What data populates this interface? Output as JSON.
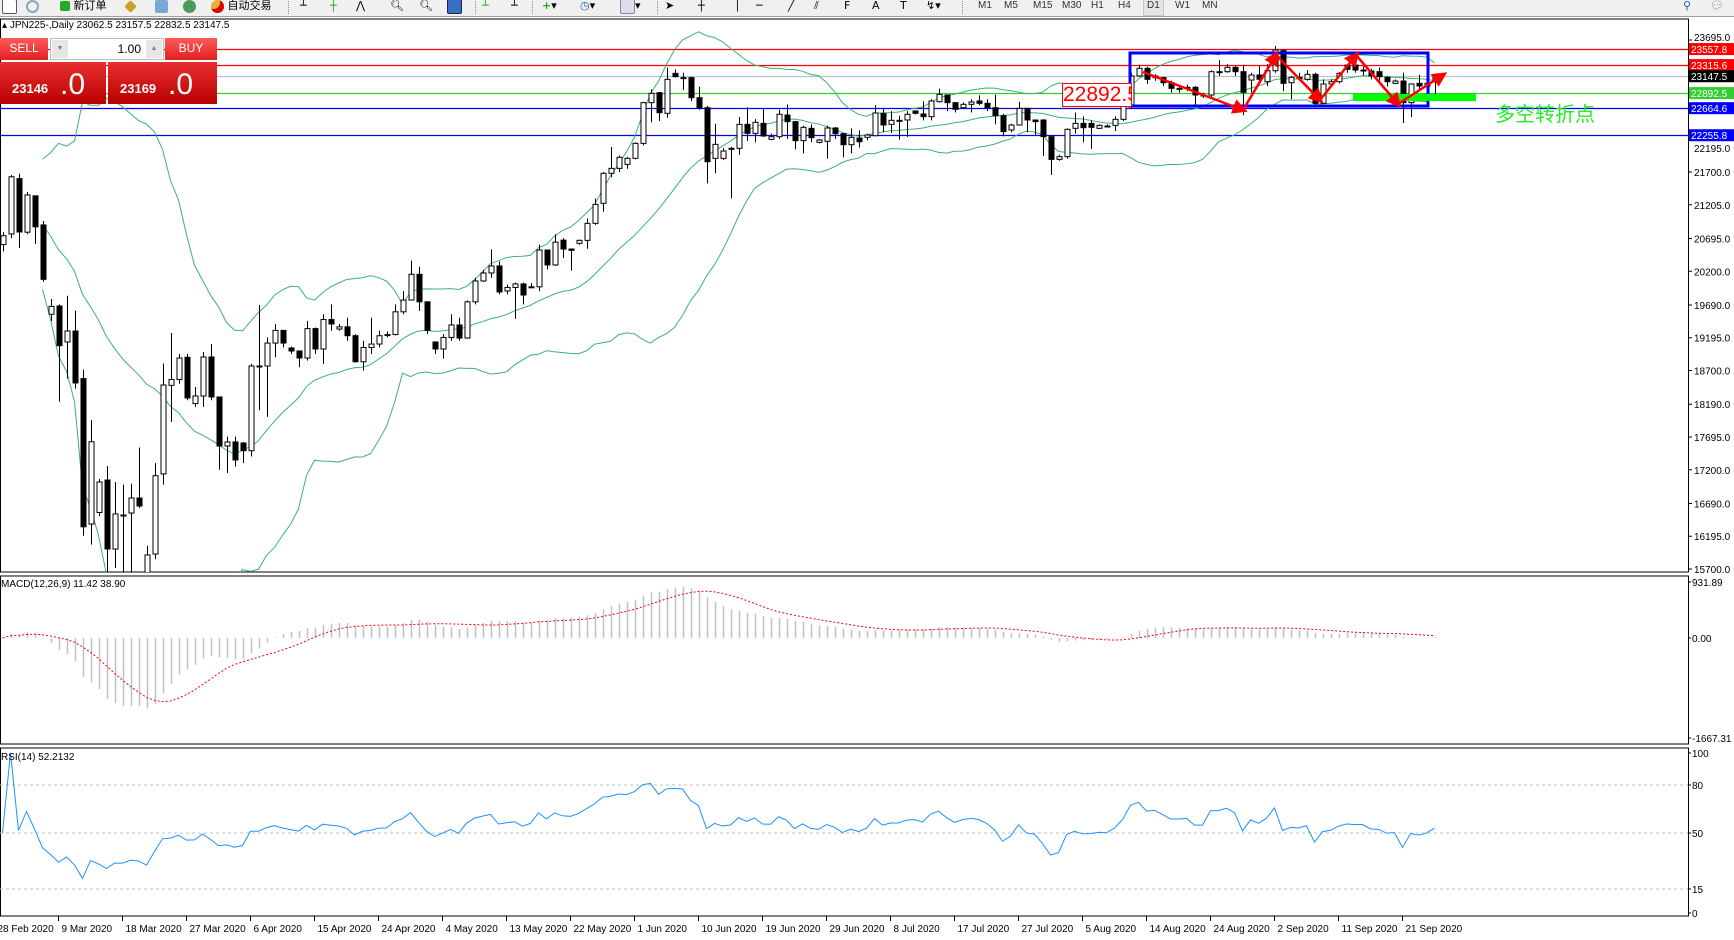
{
  "toolbar": {
    "new_order_label": "新订单",
    "auto_trading_label": "自动交易",
    "timeframes": [
      "M1",
      "M5",
      "M15",
      "M30",
      "H1",
      "H4",
      "D1",
      "W1",
      "MN"
    ],
    "selected_timeframe": "D1",
    "text_tool": "A",
    "fibo_tool": "F"
  },
  "chart_title": "JPN225-,Daily",
  "ohlc_readout": "23062.5 23157.5 22832.5 23147.5",
  "trade_panel": {
    "sell_label": "SELL",
    "buy_label": "BUY",
    "lot_value": "1.00",
    "sell_price_main": "23146",
    "sell_price_big": ".0",
    "buy_price_main": "23169",
    "buy_price_big": ".0"
  },
  "annotations": {
    "box_label": "22892.5",
    "note": "多空转折点"
  },
  "colors": {
    "bullish": "#ffffff",
    "bearish": "#000000",
    "bands": "#3cb371",
    "macd_hist": "#c0c0c0",
    "macd_signal": "#ff0000",
    "rsi": "#1e90ff",
    "arrows": "#ff0000",
    "box": "#0000ff",
    "marker": "#00ff00"
  },
  "chart_data": {
    "type": "candlestick",
    "symbol": "JPN225-",
    "timeframe": "Daily",
    "ylim": [
      15700,
      23695
    ],
    "price_ticks": [
      "23695.0",
      "22195.0",
      "21700.0",
      "21205.0",
      "20695.0",
      "20200.0",
      "19690.0",
      "19195.0",
      "18700.0",
      "18190.0",
      "17695.0",
      "17200.0",
      "16690.0",
      "16195.0",
      "15700.0"
    ],
    "date_labels": [
      "28 Feb 2020",
      "9 Mar 2020",
      "18 Mar 2020",
      "27 Mar 2020",
      "6 Apr 2020",
      "15 Apr 2020",
      "24 Apr 2020",
      "4 May 2020",
      "13 May 2020",
      "22 May 2020",
      "1 Jun 2020",
      "10 Jun 2020",
      "19 Jun 2020",
      "29 Jun 2020",
      "8 Jul 2020",
      "17 Jul 2020",
      "27 Jul 2020",
      "5 Aug 2020",
      "14 Aug 2020",
      "24 Aug 2020",
      "2 Sep 2020",
      "11 Sep 2020",
      "21 Sep 2020"
    ],
    "ohlc": [
      [
        20603,
        20790,
        20500,
        20737
      ],
      [
        20763,
        21655,
        20700,
        21628
      ],
      [
        21600,
        21676,
        20552,
        20793
      ],
      [
        20790,
        21400,
        20760,
        21353
      ],
      [
        21340,
        21340,
        20612,
        20872
      ],
      [
        20900,
        20960,
        20040,
        20078
      ],
      [
        19550,
        19781,
        19448,
        19669
      ],
      [
        19675,
        19700,
        18227,
        19075
      ],
      [
        19131,
        19830,
        18578,
        19297
      ],
      [
        19297,
        19604,
        18426,
        18512
      ],
      [
        18578,
        18714,
        16203,
        16338
      ],
      [
        16380,
        17952,
        16069,
        17623
      ],
      [
        16554,
        17060,
        16500,
        17015
      ],
      [
        17045,
        17257,
        15404,
        16002
      ],
      [
        16002,
        17015,
        15715,
        16532
      ],
      [
        16516,
        16976,
        15555,
        16516
      ],
      [
        16546,
        16990,
        15600,
        16773
      ],
      [
        16773,
        17536,
        16620,
        16652
      ],
      [
        15437,
        16050,
        15400,
        15912
      ],
      [
        15927,
        17300,
        15850,
        17110
      ],
      [
        17137,
        18805,
        16976,
        18481
      ],
      [
        18476,
        19267,
        17922,
        18563
      ],
      [
        18563,
        18950,
        18500,
        18889
      ],
      [
        18900,
        18950,
        18250,
        18285
      ],
      [
        18200,
        18450,
        18150,
        18315
      ],
      [
        18315,
        18980,
        18150,
        18904
      ],
      [
        18904,
        19100,
        18250,
        18300
      ],
      [
        18300,
        18300,
        17200,
        17559
      ],
      [
        17559,
        17700,
        17150,
        17620
      ],
      [
        17620,
        17700,
        17250,
        17348
      ],
      [
        17604,
        17620,
        17300,
        17488
      ],
      [
        17488,
        18800,
        17400,
        18768
      ],
      [
        18768,
        19690,
        18100,
        18768
      ],
      [
        18768,
        19200,
        18000,
        19115
      ],
      [
        19115,
        19400,
        18900,
        19306
      ],
      [
        19306,
        19306,
        19050,
        19115
      ],
      [
        19040,
        19060,
        18950,
        18995
      ],
      [
        18995,
        18995,
        18750,
        18889
      ],
      [
        18889,
        19450,
        18850,
        19333
      ],
      [
        19333,
        19350,
        18950,
        19025
      ],
      [
        19025,
        19550,
        18800,
        19470
      ],
      [
        19470,
        19700,
        19300,
        19403
      ],
      [
        19327,
        19400,
        19300,
        19360
      ],
      [
        19360,
        19500,
        19150,
        19226
      ],
      [
        19226,
        19250,
        18820,
        18832
      ],
      [
        18832,
        19150,
        18700,
        19048
      ],
      [
        19048,
        19500,
        18950,
        19100
      ],
      [
        19100,
        19300,
        19050,
        19226
      ],
      [
        19243,
        19290,
        19200,
        19243
      ],
      [
        19243,
        19700,
        19230,
        19587
      ],
      [
        19587,
        19900,
        19550,
        19765
      ],
      [
        19765,
        20360,
        19760,
        20154
      ],
      [
        20154,
        20270,
        19600,
        19738
      ],
      [
        19738,
        19738,
        19250,
        19306
      ],
      [
        19131,
        19131,
        18950,
        19025
      ],
      [
        19025,
        19250,
        18880,
        19199
      ],
      [
        19199,
        19550,
        19150,
        19388
      ],
      [
        19388,
        19500,
        19150,
        19191
      ],
      [
        19191,
        19760,
        19180,
        19738
      ],
      [
        19738,
        20100,
        19700,
        20053
      ],
      [
        20053,
        20220,
        20040,
        20174
      ],
      [
        20174,
        20530,
        20100,
        20280
      ],
      [
        20280,
        20350,
        19850,
        19887
      ],
      [
        19902,
        20000,
        19850,
        19955
      ],
      [
        19955,
        20030,
        19480,
        20008
      ],
      [
        20008,
        20030,
        19700,
        19841
      ],
      [
        19965,
        20020,
        19950,
        19965
      ],
      [
        19965,
        20600,
        19900,
        20521
      ],
      [
        20521,
        20521,
        20230,
        20295
      ],
      [
        20295,
        20760,
        20280,
        20640
      ],
      [
        20670,
        20700,
        20400,
        20536
      ],
      [
        20536,
        20540,
        20209,
        20516
      ],
      [
        20622,
        20680,
        20600,
        20667
      ],
      [
        20667,
        21000,
        20540,
        20924
      ],
      [
        20924,
        21300,
        20900,
        21211
      ],
      [
        21227,
        21700,
        21100,
        21680
      ],
      [
        21680,
        22078,
        21620,
        21755
      ],
      [
        21755,
        21950,
        21700,
        21922
      ],
      [
        21816,
        21930,
        21750,
        21907
      ],
      [
        21907,
        22150,
        21890,
        22133
      ],
      [
        22133,
        22760,
        22100,
        22748
      ],
      [
        22748,
        22950,
        22450,
        22889
      ],
      [
        22899,
        22910,
        22470,
        22597
      ],
      [
        22587,
        23277,
        22520,
        23100
      ],
      [
        23191,
        23250,
        23130,
        23141
      ],
      [
        23126,
        23200,
        22940,
        23126
      ],
      [
        23126,
        23140,
        22770,
        22823
      ],
      [
        22823,
        22990,
        22640,
        22672
      ],
      [
        22672,
        22700,
        21529,
        21856
      ],
      [
        21906,
        22430,
        21680,
        22118
      ],
      [
        21906,
        22060,
        21880,
        22017
      ],
      [
        22058,
        22080,
        21302,
        22058
      ],
      [
        22058,
        22530,
        21960,
        22420
      ],
      [
        22420,
        22680,
        22170,
        22284
      ],
      [
        22284,
        22500,
        22150,
        22451
      ],
      [
        22435,
        22650,
        22230,
        22244
      ],
      [
        22194,
        22280,
        22180,
        22234
      ],
      [
        22234,
        22640,
        22200,
        22572
      ],
      [
        22561,
        22720,
        22200,
        22461
      ],
      [
        22461,
        22470,
        22040,
        22174
      ],
      [
        22174,
        22400,
        21980,
        22375
      ],
      [
        22360,
        22420,
        22150,
        22219
      ],
      [
        22148,
        22200,
        22130,
        22184
      ],
      [
        22164,
        22400,
        21900,
        22365
      ],
      [
        22365,
        22380,
        22200,
        22279
      ],
      [
        22279,
        22290,
        21920,
        22113
      ],
      [
        22113,
        22360,
        21980,
        22224
      ],
      [
        22214,
        22330,
        22070,
        22158
      ],
      [
        22224,
        22280,
        22180,
        22259
      ],
      [
        22249,
        22710,
        22240,
        22592
      ],
      [
        22587,
        22670,
        22300,
        22410
      ],
      [
        22420,
        22620,
        22290,
        22481
      ],
      [
        22481,
        22550,
        22190,
        22481
      ],
      [
        22486,
        22620,
        22230,
        22572
      ],
      [
        22622,
        22630,
        22570,
        22587
      ],
      [
        22577,
        22770,
        22480,
        22536
      ],
      [
        22536,
        22800,
        22480,
        22773
      ],
      [
        22763,
        22960,
        22750,
        22874
      ],
      [
        22864,
        22870,
        22620,
        22748
      ],
      [
        22748,
        22750,
        22600,
        22647
      ],
      [
        22672,
        22750,
        22650,
        22723
      ],
      [
        22723,
        22800,
        22600,
        22758
      ],
      [
        22773,
        22860,
        22710,
        22738
      ],
      [
        22738,
        22800,
        22620,
        22672
      ],
      [
        22672,
        22870,
        22420,
        22551
      ],
      [
        22551,
        22580,
        22240,
        22310
      ],
      [
        22335,
        22430,
        22300,
        22410
      ],
      [
        22410,
        22760,
        22400,
        22662
      ],
      [
        22662,
        22670,
        22300,
        22486
      ],
      [
        22486,
        22490,
        22250,
        22461
      ],
      [
        22486,
        22500,
        21940,
        22234
      ],
      [
        22234,
        22234,
        21655,
        21891
      ],
      [
        21891,
        21960,
        21870,
        21932
      ],
      [
        21932,
        22360,
        21900,
        22345
      ],
      [
        22360,
        22600,
        22280,
        22435
      ],
      [
        22435,
        22540,
        22150,
        22370
      ],
      [
        22435,
        22480,
        22050,
        22375
      ],
      [
        22360,
        22420,
        22350,
        22405
      ],
      [
        22395,
        22420,
        22380,
        22395
      ],
      [
        22405,
        22540,
        22320,
        22496
      ],
      [
        22496,
        22800,
        22470,
        22697
      ],
      [
        22697,
        23200,
        22650,
        23151
      ],
      [
        23151,
        23320,
        23140,
        23267
      ],
      [
        23267,
        23290,
        23030,
        23101
      ],
      [
        23151,
        23180,
        23080,
        23126
      ],
      [
        23126,
        23140,
        23000,
        23050
      ],
      [
        23050,
        23080,
        22900,
        22964
      ],
      [
        22964,
        23000,
        22900,
        22964
      ],
      [
        22964,
        23020,
        22920,
        22980
      ],
      [
        22980,
        23000,
        22680,
        22864
      ],
      [
        22864,
        22900,
        22820,
        22864
      ],
      [
        22864,
        23240,
        22830,
        23216
      ],
      [
        23216,
        23390,
        23150,
        23216
      ],
      [
        23216,
        23330,
        23200,
        23282
      ],
      [
        23282,
        23310,
        23150,
        23216
      ],
      [
        23216,
        23320,
        22560,
        22904
      ],
      [
        23090,
        23200,
        22900,
        23166
      ],
      [
        23166,
        23300,
        23050,
        23101
      ],
      [
        23065,
        23330,
        23000,
        23231
      ],
      [
        23231,
        23604,
        23200,
        23544
      ],
      [
        23534,
        23540,
        22920,
        23040
      ],
      [
        23050,
        23150,
        22800,
        23131
      ],
      [
        23131,
        23200,
        23080,
        23116
      ],
      [
        23101,
        23240,
        23080,
        23176
      ],
      [
        23176,
        23200,
        22720,
        22738
      ],
      [
        22738,
        23100,
        22730,
        23030
      ],
      [
        23030,
        23100,
        23000,
        23065
      ],
      [
        23065,
        23210,
        23040,
        23191
      ],
      [
        23317,
        23330,
        23200,
        23252
      ],
      [
        23317,
        23330,
        23200,
        23241
      ],
      [
        23241,
        23300,
        23160,
        23241
      ],
      [
        23226,
        23260,
        23100,
        23151
      ],
      [
        23216,
        23280,
        23080,
        23141
      ],
      [
        23131,
        23150,
        22990,
        23065
      ],
      [
        23040,
        23100,
        23030,
        23075
      ],
      [
        23075,
        23200,
        22440,
        22748
      ],
      [
        22748,
        23040,
        22530,
        23030
      ],
      [
        23040,
        23170,
        22950,
        23000
      ],
      [
        23000,
        23060,
        22990,
        23040
      ],
      [
        23062.5,
        23157.5,
        22832.5,
        23147.5
      ]
    ],
    "horizontal_lines": [
      {
        "price": 23557.8,
        "label": "23557.8",
        "color": "#ff0000",
        "label_bg": "#ff0000"
      },
      {
        "price": 23315.6,
        "label": "23315.6",
        "color": "#ff0000",
        "label_bg": "#ff0000"
      },
      {
        "price": 23147.5,
        "label": "23147.5",
        "color": "#c0c0c0",
        "label_bg": "#000000"
      },
      {
        "price": 22892.5,
        "label": "22892.5",
        "color": "#32cd32",
        "label_bg": "#32cd32"
      },
      {
        "price": 22664.6,
        "label": "22664.6",
        "color": "#0000ff",
        "label_bg": "#0000ff"
      },
      {
        "price": 22255.8,
        "label": "22255.8",
        "color": "#0000ff",
        "label_bg": "#0000ff"
      }
    ],
    "macd": {
      "label": "MACD(12,26,9) 11.42 38.90",
      "ylim": [
        -1667.31,
        931.89
      ],
      "ticks": [
        "931.89",
        "0.00",
        "-1667.31"
      ]
    },
    "rsi": {
      "label": "RSI(14) 52.2132",
      "ylim": [
        0,
        100
      ],
      "ticks": [
        "100",
        "80",
        "50",
        "15",
        "0"
      ],
      "levels": [
        80,
        50,
        15
      ]
    }
  }
}
